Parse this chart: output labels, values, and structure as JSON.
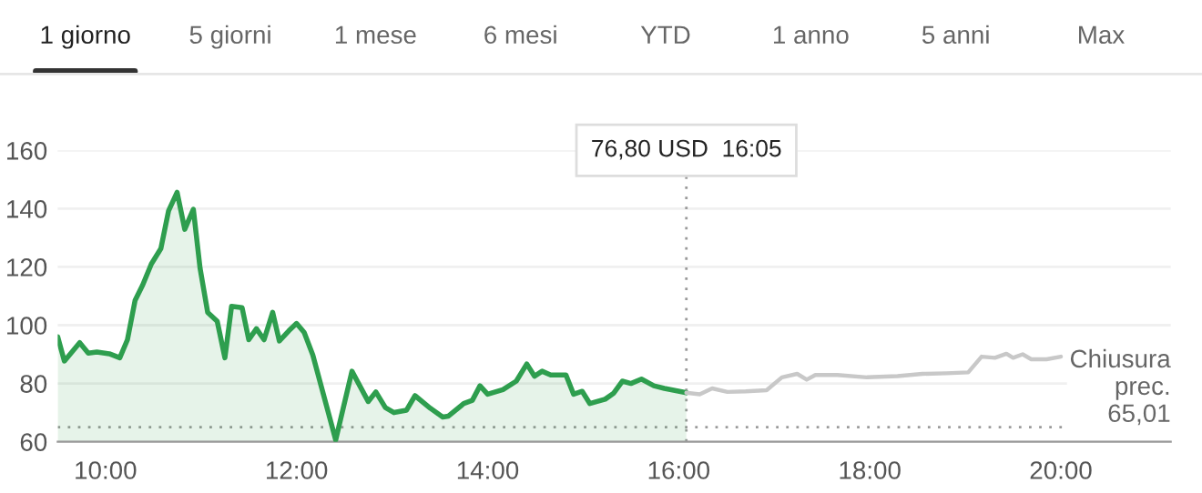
{
  "chart_data": {
    "type": "line",
    "annotations": [
      "1 giorno",
      "5 giorni",
      "1 mese",
      "6 mesi",
      "YTD",
      "1 anno",
      "5 anni",
      "Max"
    ],
    "series": [
      {
        "type": "area",
        "color": "#2e9e4e",
        "x": [
          9.5,
          9.57,
          9.73,
          9.82,
          9.91,
          10.04,
          10.15,
          10.23,
          10.31,
          10.39,
          10.48,
          10.58,
          10.66,
          10.75,
          10.83,
          10.92,
          10.99,
          11.07,
          11.17,
          11.25,
          11.32,
          11.43,
          11.5,
          11.58,
          11.66,
          11.75,
          11.82,
          11.92,
          12.0,
          12.08,
          12.17,
          12.41,
          12.58,
          12.75,
          12.83,
          12.93,
          13.02,
          13.15,
          13.24,
          13.4,
          13.53,
          13.59,
          13.75,
          13.84,
          13.92,
          14.0,
          14.16,
          14.3,
          14.41,
          14.49,
          14.57,
          14.66,
          14.82,
          14.9,
          14.99,
          15.07,
          15.23,
          15.32,
          15.41,
          15.5,
          15.61,
          15.74,
          15.85,
          16.08
        ],
        "values": [
          96,
          87.7,
          94,
          90.4,
          90.8,
          90.2,
          88.8,
          95,
          108.5,
          113.8,
          121,
          126.3,
          139.2,
          145.6,
          132.9,
          139.8,
          119.6,
          104.4,
          101.3,
          88.8,
          106.5,
          106,
          95,
          98.8,
          95,
          104.4,
          94.6,
          98.1,
          100.6,
          97.5,
          89.8,
          60.6,
          84.2,
          73.8,
          77.1,
          71.7,
          70,
          70.8,
          75.8,
          71.5,
          68.5,
          68.8,
          73.1,
          74.2,
          79.2,
          76.3,
          77.9,
          80.8,
          86.7,
          82.5,
          84.2,
          82.9,
          82.9,
          76.3,
          77.3,
          73.1,
          74.6,
          76.7,
          80.8,
          80,
          81.5,
          79.2,
          78.3,
          76.8
        ]
      },
      {
        "color": "#c8c8c8",
        "x": [
          16.08,
          16.22,
          16.35,
          16.51,
          16.7,
          16.92,
          17.08,
          17.24,
          17.34,
          17.43,
          17.66,
          17.97,
          18.29,
          18.55,
          18.8,
          19.03,
          19.17,
          19.31,
          19.43,
          19.5,
          19.6,
          19.69,
          19.85,
          20.0
        ],
        "values": [
          76.8,
          76.3,
          78.3,
          77.1,
          77.3,
          77.7,
          82.1,
          83.3,
          81.3,
          82.9,
          82.9,
          82.1,
          82.5,
          83.3,
          83.5,
          83.8,
          89.2,
          88.8,
          90.2,
          88.8,
          90,
          88.3,
          88.3,
          89.2
        ]
      }
    ],
    "xlim": [
      9.5,
      21.15
    ],
    "xticks": [
      {
        "value": 10,
        "label": "10:00"
      },
      {
        "value": 12,
        "label": "12:00"
      },
      {
        "value": 14,
        "label": "14:00"
      },
      {
        "value": 16,
        "label": "16:00"
      },
      {
        "value": 18,
        "label": "18:00"
      },
      {
        "value": 20,
        "label": "20:00"
      }
    ],
    "ylim": [
      60,
      160
    ],
    "yticks": [
      60,
      80,
      100,
      120,
      140,
      160
    ],
    "grid": "y",
    "ref_lines": [
      {
        "axis": "y",
        "value": 65.01,
        "label": "Chiusura\nprec.\n65,01",
        "color": "#9a9a9a",
        "line_style": "dotted"
      },
      {
        "axis": "x",
        "value": 16.08,
        "label": "76,80 USD  16:05",
        "color": "#9a9a9a",
        "line_style": "dotted"
      }
    ]
  }
}
